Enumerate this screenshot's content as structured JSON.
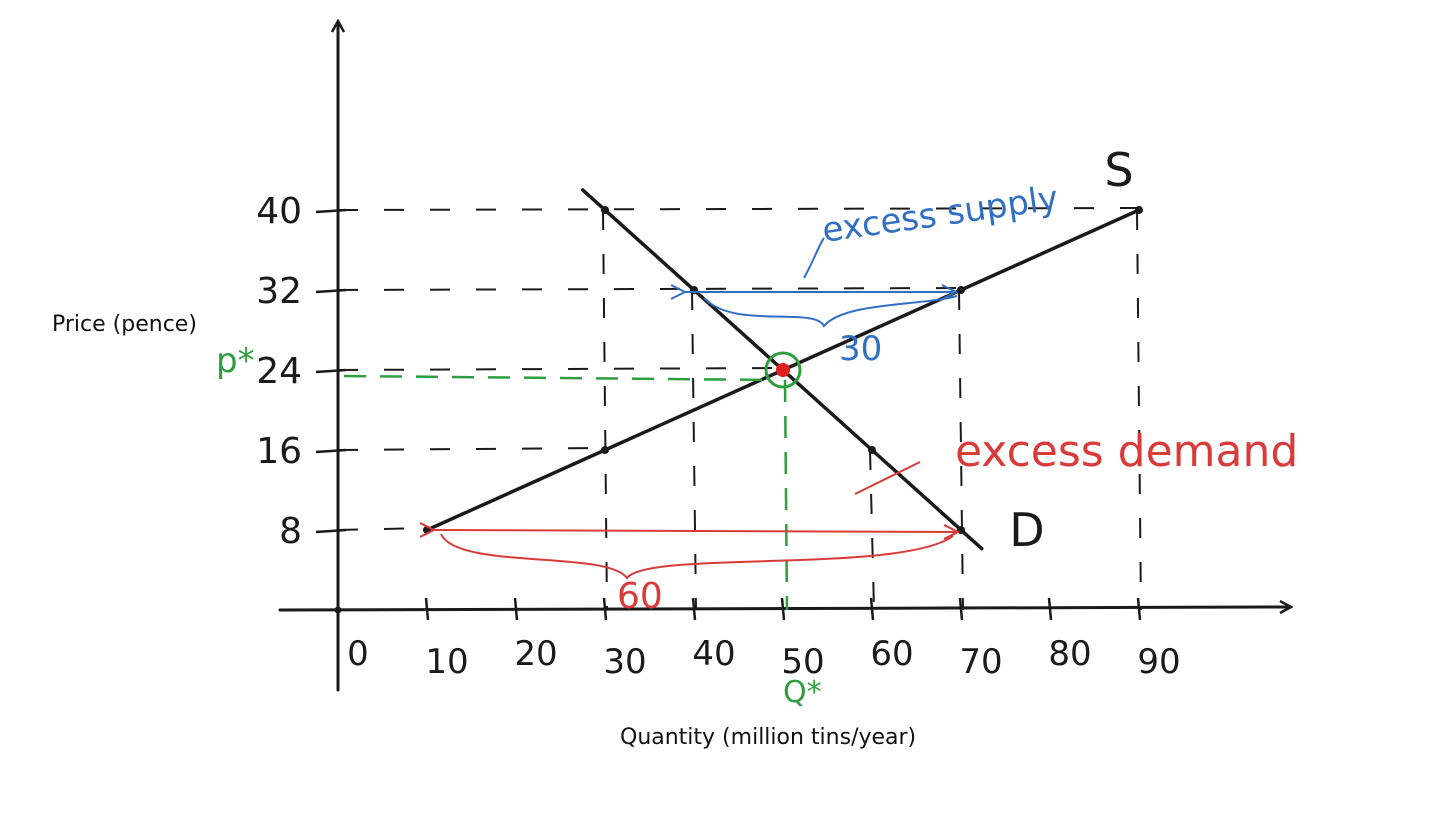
{
  "chart_data": {
    "type": "line",
    "title": "",
    "xlabel": "Quantity (million tins/year)",
    "ylabel": "Price (pence)",
    "xlim": [
      0,
      100
    ],
    "ylim": [
      0,
      48
    ],
    "x_ticks": [
      0,
      10,
      20,
      30,
      40,
      50,
      60,
      70,
      80,
      90
    ],
    "x_tick_labels": [
      "0",
      "10",
      "20",
      "30",
      "40",
      "50",
      "60",
      "70",
      "80",
      "90"
    ],
    "y_ticks": [
      8,
      16,
      24,
      32,
      40
    ],
    "y_tick_labels": [
      "8",
      "16",
      "24",
      "32",
      "40"
    ],
    "series": [
      {
        "name": "S",
        "color": "#1a1a1a",
        "points": [
          [
            10,
            8
          ],
          [
            30,
            16
          ],
          [
            50,
            24
          ],
          [
            70,
            32
          ],
          [
            90,
            40
          ]
        ]
      },
      {
        "name": "D",
        "color": "#1a1a1a",
        "points": [
          [
            30,
            40
          ],
          [
            40,
            32
          ],
          [
            50,
            24
          ],
          [
            60,
            16
          ],
          [
            70,
            8
          ]
        ]
      }
    ],
    "equilibrium": {
      "x": 50,
      "y": 24,
      "price_label": "p*",
      "quantity_label": "Q*",
      "color": "#2e9e3e"
    },
    "annotations": [
      {
        "text": "excess supply",
        "value_label": "30",
        "at_price": 32,
        "from_x": 40,
        "to_x": 70,
        "color": "#2f6fc4"
      },
      {
        "text": "excess demand",
        "value_label": "60",
        "at_price": 8,
        "from_x": 10,
        "to_x": 70,
        "color": "#d93a3a"
      }
    ],
    "grid": "dashed guide lines"
  }
}
